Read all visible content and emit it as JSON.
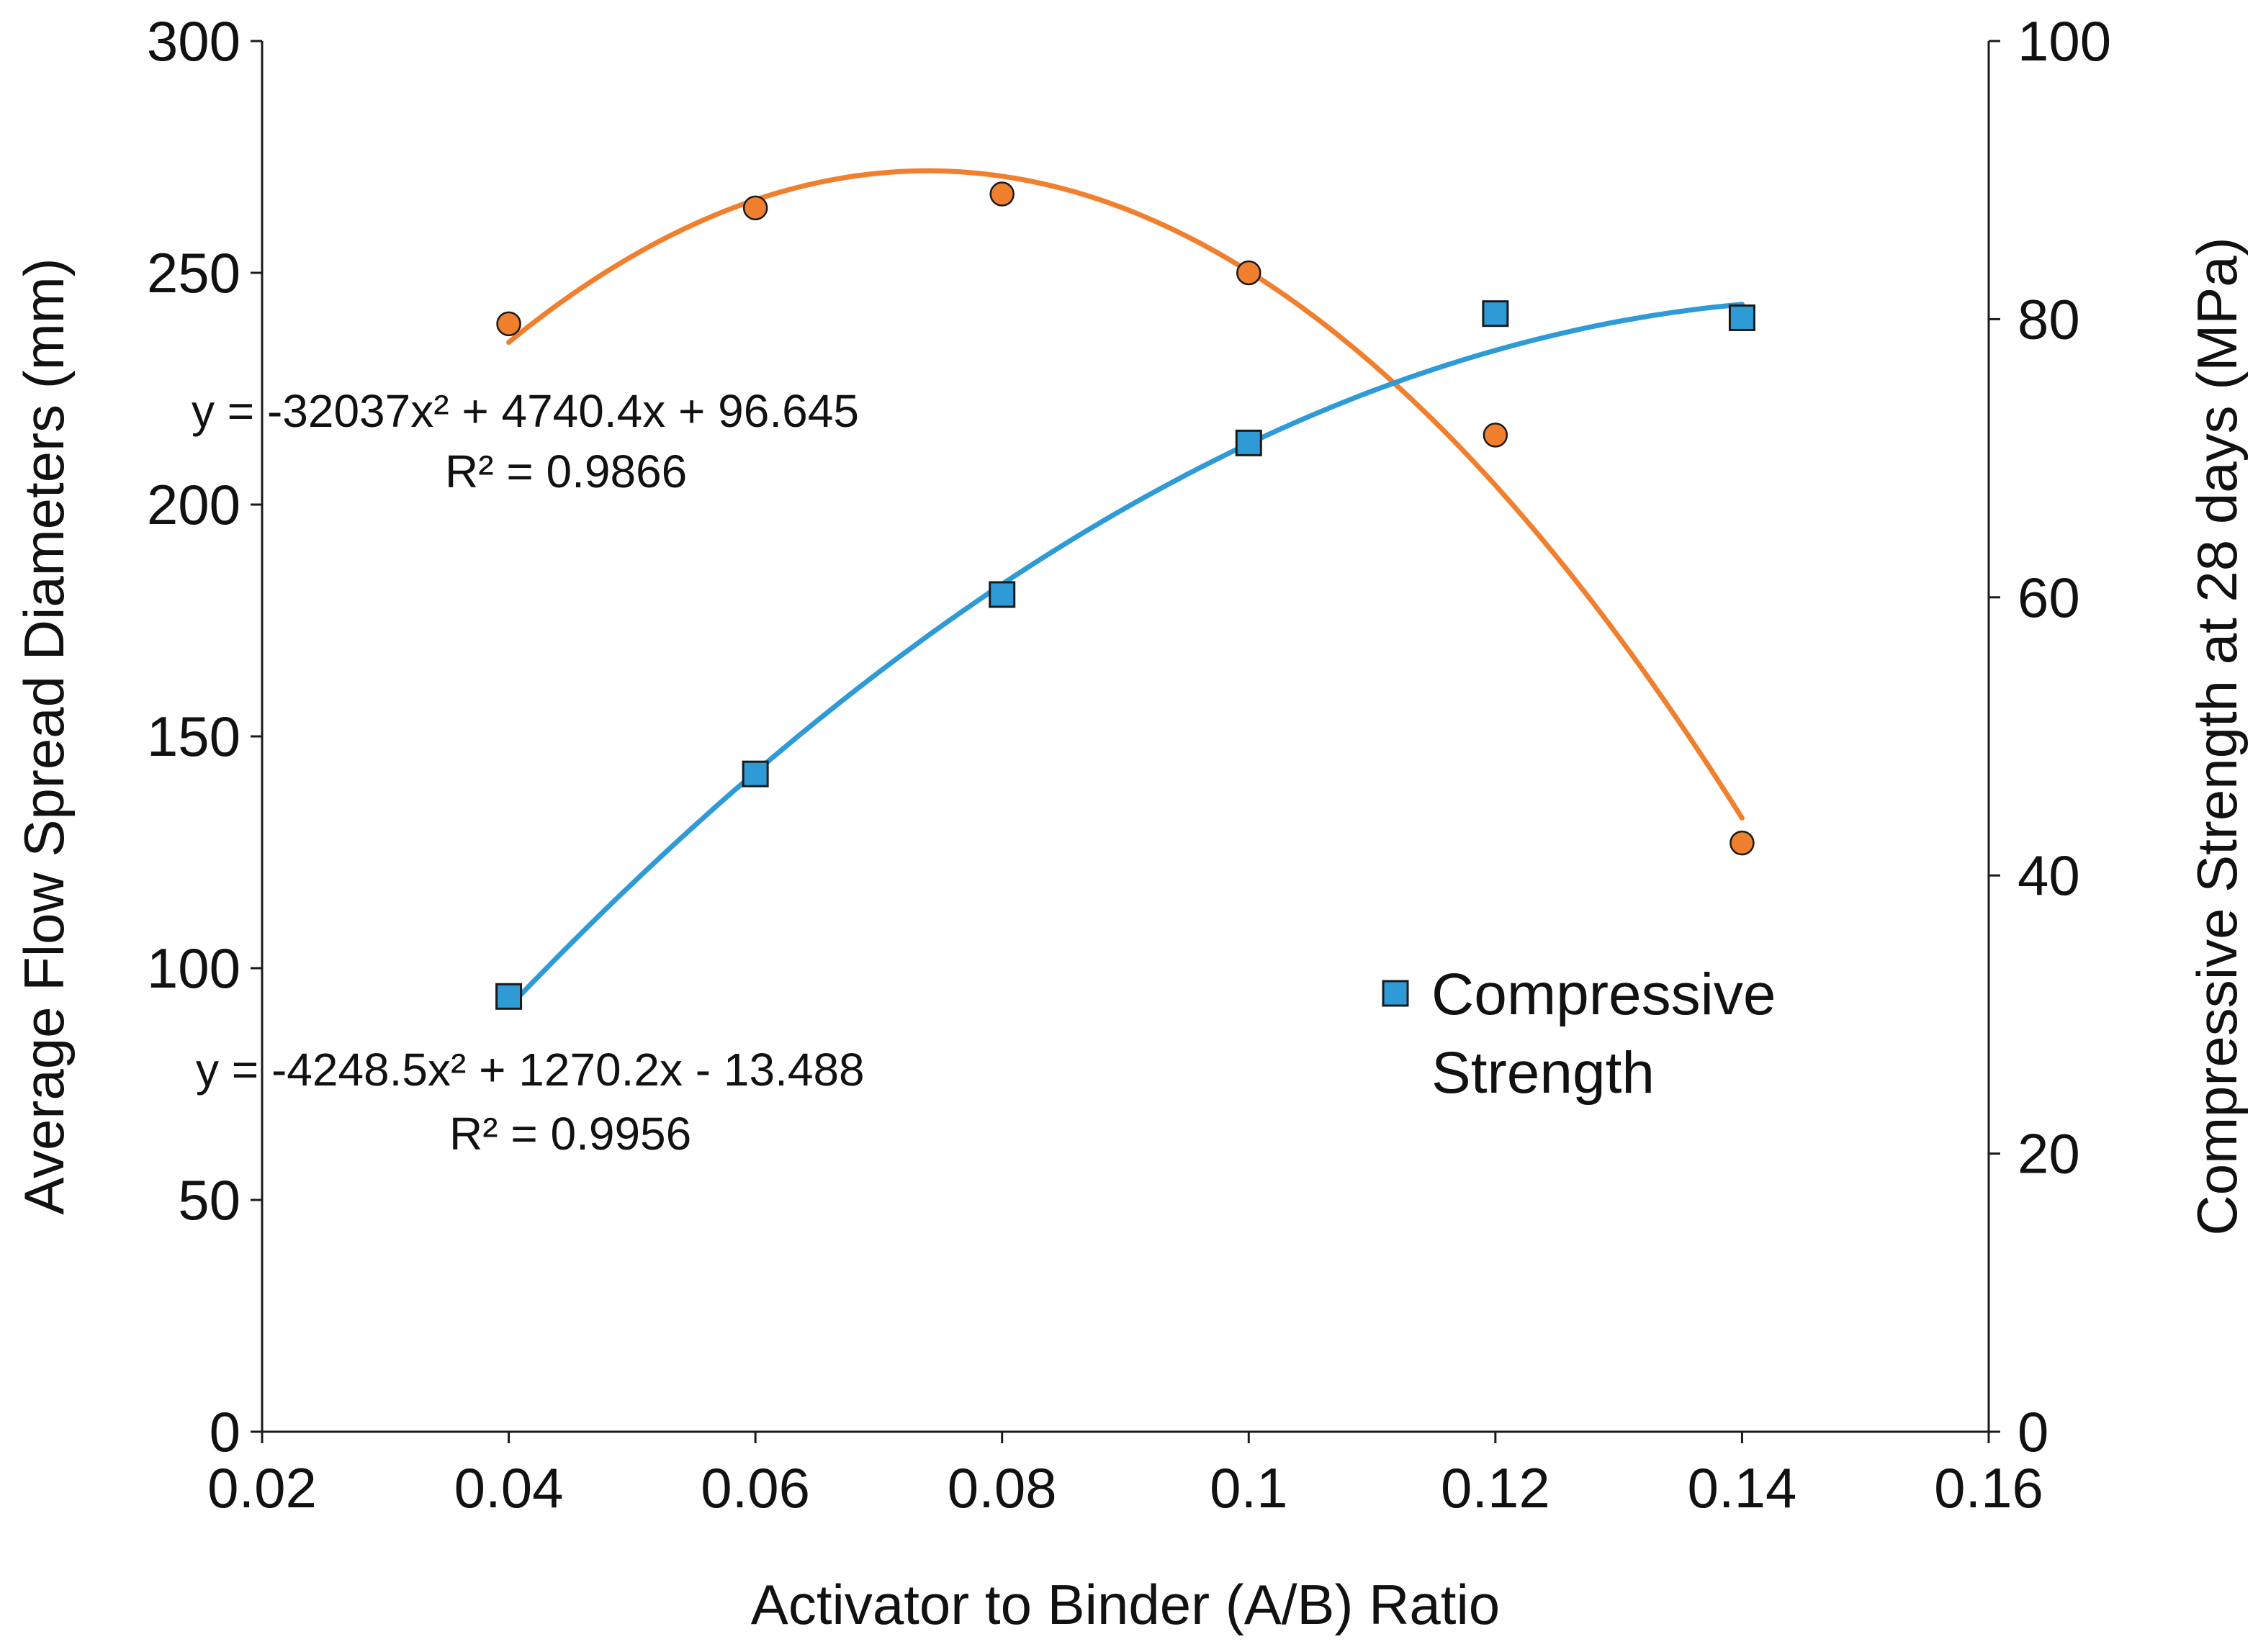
{
  "chart_data": {
    "type": "scatter",
    "xlabel": "Activator to Binder (A/B) Ratio",
    "ylabel_left": "Average Flow Spread Diameters (mm)",
    "ylabel_right": "Compressive Strength at 28 days (MPa)",
    "xlim": [
      0.02,
      0.16
    ],
    "ylim_left": [
      0,
      300
    ],
    "ylim_right": [
      0,
      100
    ],
    "x_ticks": [
      "0.02",
      "0.04",
      "0.06",
      "0.08",
      "0.1",
      "0.12",
      "0.14",
      "0.16"
    ],
    "y_left_ticks": [
      "0",
      "50",
      "100",
      "150",
      "200",
      "250",
      "300"
    ],
    "y_right_ticks": [
      "0",
      "20",
      "40",
      "60",
      "80",
      "100"
    ],
    "grid": false,
    "series": [
      {
        "name": "Flow Spread",
        "axis": "left",
        "marker": "circle",
        "color": "#F07F2E",
        "x": [
          0.04,
          0.06,
          0.08,
          0.1,
          0.12,
          0.14
        ],
        "y": [
          239,
          264,
          267,
          250,
          215,
          127
        ],
        "trendline": {
          "type": "polynomial",
          "coefficients": [
            -32037,
            4740.4,
            96.645
          ]
        }
      },
      {
        "name": "Compressive Strength",
        "axis": "right",
        "marker": "square",
        "color": "#2E9AD6",
        "x": [
          0.04,
          0.06,
          0.08,
          0.1,
          0.12,
          0.14
        ],
        "y": [
          31.3,
          47.3,
          60.2,
          71.1,
          80.4,
          80.1
        ],
        "trendline": {
          "type": "polynomial",
          "coefficients": [
            -4248.5,
            1270.2,
            -13.488
          ]
        }
      }
    ],
    "annotations": [
      {
        "equation": "y = -32037x² + 4740.4x + 96.645",
        "r2": "R² = 0.9866"
      },
      {
        "equation": "y = -4248.5x² + 1270.2x - 13.488",
        "r2": "R² = 0.9956"
      }
    ],
    "legend": {
      "position": "center-right",
      "entries": [
        {
          "line1": "Compressive",
          "line2": "Strength"
        }
      ]
    }
  }
}
